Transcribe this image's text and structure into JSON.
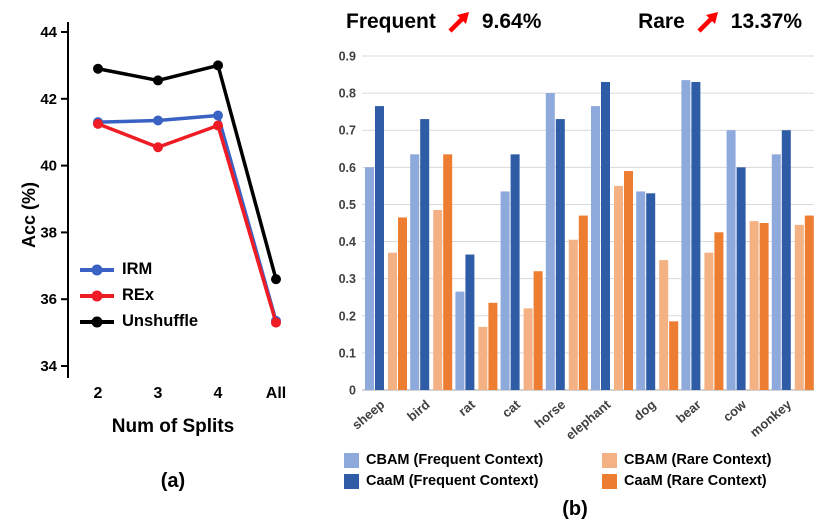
{
  "panel_a": {
    "caption": "(a)"
  },
  "panel_b": {
    "caption": "(b)",
    "arrow_color": "#FF0000",
    "headers": [
      {
        "label": "Frequent",
        "value": "9.64%"
      },
      {
        "label": "Rare",
        "value": "13.37%"
      }
    ]
  },
  "chart_data": [
    {
      "type": "line",
      "title": "",
      "xlabel": "Num of Splits",
      "ylabel": "Acc (%)",
      "categories": [
        "2",
        "3",
        "4",
        "All"
      ],
      "ylim": [
        34,
        44
      ],
      "yticks": [
        34,
        36,
        38,
        40,
        42,
        44
      ],
      "grid": false,
      "legend_position": "inside-left",
      "series": [
        {
          "name": "IRM",
          "color": "#3A62C4",
          "values": [
            41.3,
            41.35,
            41.5,
            35.35
          ]
        },
        {
          "name": "REx",
          "color": "#EE1C25",
          "values": [
            41.25,
            40.55,
            41.2,
            35.3
          ]
        },
        {
          "name": "Unshuffle",
          "color": "#000000",
          "values": [
            42.9,
            42.55,
            43.0,
            36.6
          ]
        }
      ]
    },
    {
      "type": "bar",
      "title": "",
      "xlabel": "",
      "ylabel": "",
      "categories": [
        "sheep",
        "bird",
        "rat",
        "cat",
        "horse",
        "elephant",
        "dog",
        "bear",
        "cow",
        "monkey"
      ],
      "ylim": [
        0,
        0.9
      ],
      "yticks": [
        0,
        0.1,
        0.2,
        0.3,
        0.4,
        0.5,
        0.6,
        0.7,
        0.8,
        0.9
      ],
      "grid": true,
      "legend_position": "bottom",
      "annotations": [
        {
          "text": "Frequent +9.64%"
        },
        {
          "text": "Rare +13.37%"
        }
      ],
      "series": [
        {
          "name": "CBAM (Frequent Context)",
          "color": "#8EA9DB",
          "values": [
            0.6,
            0.635,
            0.265,
            0.535,
            0.8,
            0.765,
            0.535,
            0.835,
            0.7,
            0.635
          ]
        },
        {
          "name": "CaaM (Frequent Context)",
          "color": "#2E5CA6",
          "values": [
            0.765,
            0.73,
            0.365,
            0.635,
            0.73,
            0.83,
            0.53,
            0.83,
            0.6,
            0.7
          ]
        },
        {
          "name": "CBAM (Rare Context)",
          "color": "#F4B183",
          "values": [
            0.37,
            0.485,
            0.17,
            0.22,
            0.405,
            0.55,
            0.35,
            0.37,
            0.455,
            0.445
          ]
        },
        {
          "name": "CaaM (Rare Context)",
          "color": "#ED7D31",
          "values": [
            0.465,
            0.635,
            0.235,
            0.32,
            0.47,
            0.59,
            0.185,
            0.425,
            0.45,
            0.47
          ]
        }
      ]
    }
  ]
}
